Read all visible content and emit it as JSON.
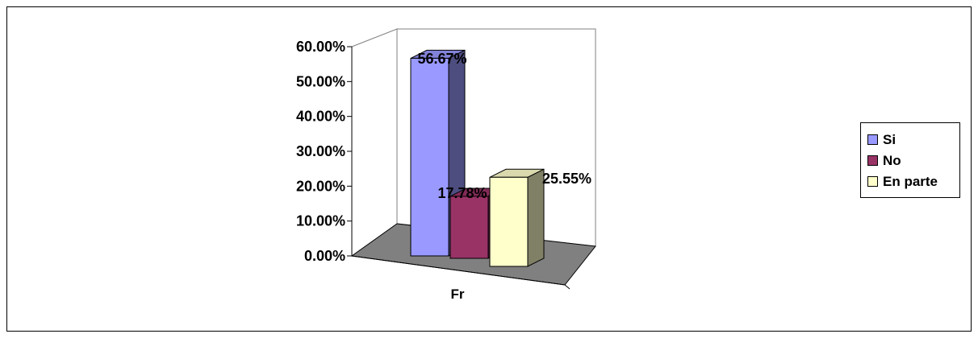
{
  "chart_data": {
    "type": "bar",
    "categories": [
      "Fr"
    ],
    "series": [
      {
        "name": "Si",
        "values": [
          56.67
        ],
        "label": "56.67%",
        "color": "#9999ff"
      },
      {
        "name": "No",
        "values": [
          17.78
        ],
        "label": "17.78%",
        "color": "#993366"
      },
      {
        "name": "En parte",
        "values": [
          25.55
        ],
        "label": "25.55%",
        "color": "#ffffcc"
      }
    ],
    "ylim": [
      0,
      60
    ],
    "yticks": [
      "0.00%",
      "10.00%",
      "20.00%",
      "30.00%",
      "40.00%",
      "50.00%",
      "60.00%"
    ],
    "legend_position": "right",
    "style": "3d-column",
    "floor_color": "#808080"
  }
}
